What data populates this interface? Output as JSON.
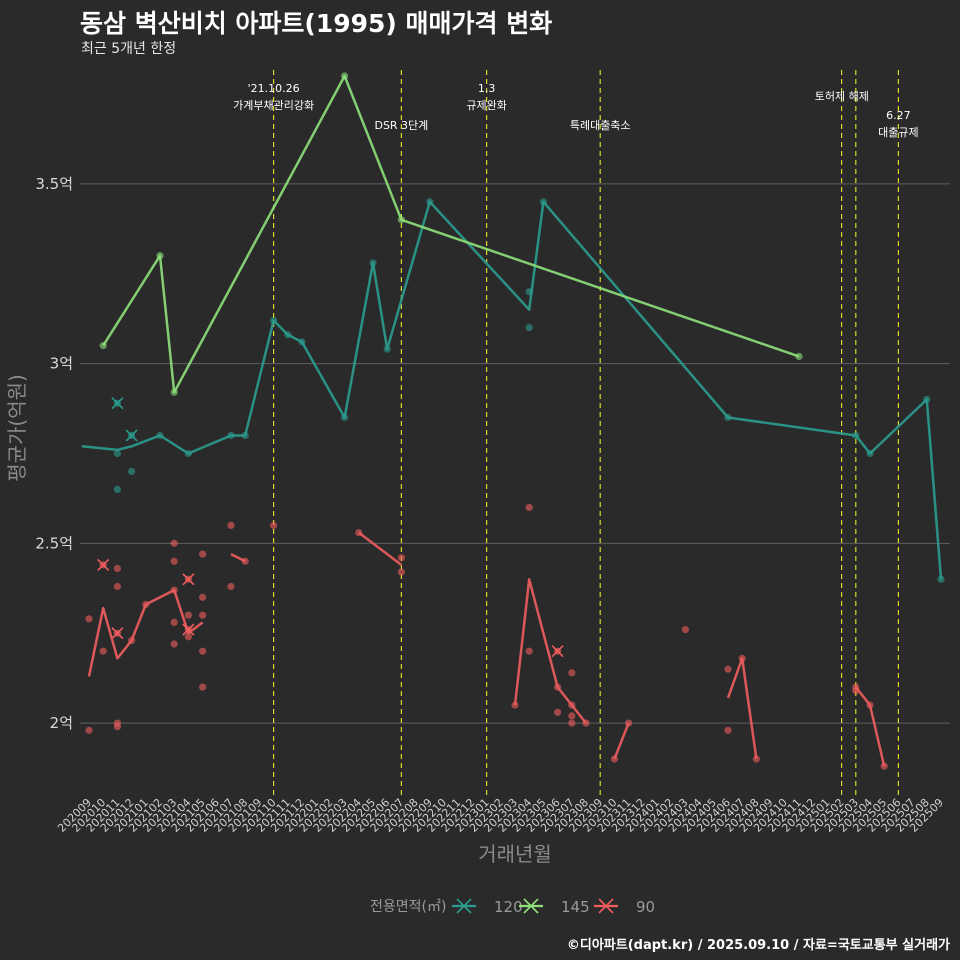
{
  "title": "동삼 벽산비치 아파트(1995) 매매가격 변화",
  "subtitle": "최근 5개년 한정",
  "caption": "©디아파트(dapt.kr) / 2025.09.10 / 자료=국토교통부 실거래가",
  "chart_data": {
    "type": "line",
    "xlabel": "거래년월",
    "ylabel": "평균가(억원)",
    "ylim": [
      1.8,
      3.85
    ],
    "y_ticks": [
      2,
      2.5,
      3,
      3.5
    ],
    "y_tick_labels": [
      "2억",
      "2.5억",
      "3억",
      "3.5억"
    ],
    "grid": true,
    "categories": [
      "202009",
      "202010",
      "202011",
      "202012",
      "202101",
      "202102",
      "202103",
      "202104",
      "202105",
      "202106",
      "202107",
      "202108",
      "202109",
      "202110",
      "202111",
      "202112",
      "202201",
      "202202",
      "202203",
      "202204",
      "202205",
      "202206",
      "202207",
      "202208",
      "202209",
      "202210",
      "202211",
      "202212",
      "202301",
      "202302",
      "202303",
      "202304",
      "202305",
      "202306",
      "202307",
      "202308",
      "202309",
      "202310",
      "202311",
      "202312",
      "202401",
      "202402",
      "202403",
      "202404",
      "202405",
      "202406",
      "202407",
      "202408",
      "202409",
      "202410",
      "202411",
      "202412",
      "202501",
      "202502",
      "202503",
      "202504",
      "202505",
      "202506",
      "202507",
      "202508",
      "202509"
    ],
    "legend": {
      "title": "전용면적(㎡)",
      "position": "bottom",
      "entries": [
        {
          "label": "120",
          "color": "#2a9d8f"
        },
        {
          "label": "145",
          "color": "#8ee07a"
        },
        {
          "label": "90",
          "color": "#f05d5e"
        }
      ]
    },
    "events": [
      {
        "x": "202110",
        "label1": "'21.10.26",
        "label2": "가계부채관리강화"
      },
      {
        "x": "202207",
        "label1": "",
        "label2": "DSR 3단계"
      },
      {
        "x": "202301",
        "label1": "1.3",
        "label2": "규제완화"
      },
      {
        "x": "202309",
        "label1": "",
        "label2": "특례대출축소"
      },
      {
        "x": "202502",
        "label1": "",
        "label2": ""
      },
      {
        "x": "202503",
        "label1": "토허제 해제",
        "label2": ""
      },
      {
        "x": "202506",
        "label1": "6.27",
        "label2": "대출규제"
      }
    ],
    "series": [
      {
        "name": "120",
        "color": "#2a9d8f",
        "line": [
          [
            -0.5,
            2.77
          ],
          [
            "202011",
            2.76
          ],
          [
            "202012",
            2.77
          ],
          [
            "202102",
            2.8
          ],
          [
            "202104",
            2.75
          ],
          [
            "202107",
            2.8
          ],
          [
            "202108",
            2.8
          ],
          [
            "202110",
            3.12
          ],
          [
            "202111",
            3.08
          ],
          [
            "202112",
            3.06
          ],
          [
            "202203",
            2.85
          ],
          [
            "202205",
            3.28
          ],
          [
            "202206",
            3.04
          ],
          [
            "202209",
            3.45
          ],
          [
            "202304",
            3.15
          ],
          [
            "202305",
            3.45
          ],
          [
            "202406",
            2.85
          ],
          [
            "202503",
            2.8
          ],
          [
            "202504",
            2.75
          ],
          [
            "202508",
            2.9
          ],
          [
            "202509",
            2.4
          ]
        ],
        "points": [
          [
            "202011",
            2.75
          ],
          [
            "202011",
            2.65
          ],
          [
            "202012",
            2.7
          ],
          [
            "202102",
            2.8
          ],
          [
            "202104",
            2.75
          ],
          [
            "202107",
            2.8
          ],
          [
            "202108",
            2.8
          ],
          [
            "202110",
            3.12
          ],
          [
            "202111",
            3.08
          ],
          [
            "202112",
            3.06
          ],
          [
            "202203",
            2.85
          ],
          [
            "202205",
            3.28
          ],
          [
            "202206",
            3.04
          ],
          [
            "202209",
            3.45
          ],
          [
            "202304",
            3.2
          ],
          [
            "202304",
            3.1
          ],
          [
            "202305",
            3.45
          ],
          [
            "202406",
            2.85
          ],
          [
            "202503",
            2.8
          ],
          [
            "202504",
            2.75
          ],
          [
            "202508",
            2.9
          ],
          [
            "202509",
            2.4
          ]
        ],
        "cancelled": [
          [
            "202011",
            2.89
          ],
          [
            "202012",
            2.8
          ]
        ]
      },
      {
        "name": "145",
        "color": "#8ee07a",
        "line": [
          [
            "202010",
            3.05
          ],
          [
            "202102",
            3.3
          ],
          [
            "202103",
            2.92
          ],
          [
            "202203",
            3.8
          ],
          [
            "202207",
            3.4
          ],
          [
            "202411",
            3.02
          ]
        ],
        "points": [
          [
            "202010",
            3.05
          ],
          [
            "202102",
            3.3
          ],
          [
            "202103",
            2.92
          ],
          [
            "202203",
            3.8
          ],
          [
            "202207",
            3.4
          ],
          [
            "202411",
            3.02
          ]
        ],
        "cancelled": []
      },
      {
        "name": "90",
        "color": "#f05d5e",
        "segments": [
          [
            [
              "202009",
              2.13
            ],
            [
              "202010",
              2.32
            ],
            [
              "202011",
              2.18
            ],
            [
              "202012",
              2.23
            ],
            [
              "202101",
              2.33
            ],
            [
              "202103",
              2.37
            ],
            [
              "202104",
              2.25
            ],
            [
              "202105",
              2.28
            ]
          ],
          [
            [
              "202107",
              2.47
            ],
            [
              "202108",
              2.45
            ]
          ],
          [
            [
              "202204",
              2.53
            ],
            [
              "202207",
              2.44
            ]
          ],
          [
            [
              "202303",
              2.05
            ],
            [
              "202304",
              2.4
            ],
            [
              "202306",
              2.1
            ],
            [
              "202307",
              2.05
            ],
            [
              "202308",
              2.0
            ]
          ],
          [
            [
              "202310",
              1.9
            ],
            [
              "202311",
              2.0
            ]
          ],
          [
            [
              "202406",
              2.07
            ],
            [
              "202407",
              2.18
            ],
            [
              "202408",
              1.9
            ]
          ],
          [
            [
              "202503",
              2.1
            ],
            [
              "202504",
              2.05
            ],
            [
              "202505",
              1.88
            ]
          ]
        ],
        "points": [
          [
            "202009",
            2.29
          ],
          [
            "202009",
            1.98
          ],
          [
            "202010",
            2.2
          ],
          [
            "202011",
            2.43
          ],
          [
            "202011",
            2.38
          ],
          [
            "202011",
            2.0
          ],
          [
            "202011",
            1.99
          ],
          [
            "202012",
            2.23
          ],
          [
            "202101",
            2.33
          ],
          [
            "202103",
            2.5
          ],
          [
            "202103",
            2.45
          ],
          [
            "202103",
            2.37
          ],
          [
            "202103",
            2.28
          ],
          [
            "202103",
            2.22
          ],
          [
            "202104",
            2.3
          ],
          [
            "202104",
            2.24
          ],
          [
            "202105",
            2.47
          ],
          [
            "202105",
            2.35
          ],
          [
            "202105",
            2.3
          ],
          [
            "202105",
            2.2
          ],
          [
            "202105",
            2.1
          ],
          [
            "202107",
            2.55
          ],
          [
            "202107",
            2.38
          ],
          [
            "202108",
            2.45
          ],
          [
            "202110",
            2.55
          ],
          [
            "202204",
            2.53
          ],
          [
            "202207",
            2.46
          ],
          [
            "202207",
            2.42
          ],
          [
            "202303",
            2.05
          ],
          [
            "202304",
            2.6
          ],
          [
            "202304",
            2.2
          ],
          [
            "202306",
            2.1
          ],
          [
            "202306",
            2.03
          ],
          [
            "202307",
            2.14
          ],
          [
            "202307",
            2.05
          ],
          [
            "202307",
            2.02
          ],
          [
            "202307",
            2.0
          ],
          [
            "202308",
            2.0
          ],
          [
            "202310",
            1.9
          ],
          [
            "202311",
            2.0
          ],
          [
            "202403",
            2.26
          ],
          [
            "202406",
            2.15
          ],
          [
            "202406",
            1.98
          ],
          [
            "202407",
            2.18
          ],
          [
            "202408",
            1.9
          ],
          [
            "202503",
            2.1
          ],
          [
            "202503",
            2.09
          ],
          [
            "202504",
            2.05
          ],
          [
            "202505",
            1.88
          ]
        ],
        "cancelled": [
          [
            "202010",
            2.44
          ],
          [
            "202011",
            2.25
          ],
          [
            "202104",
            2.4
          ],
          [
            "202104",
            2.26
          ],
          [
            "202306",
            2.2
          ]
        ]
      }
    ]
  }
}
